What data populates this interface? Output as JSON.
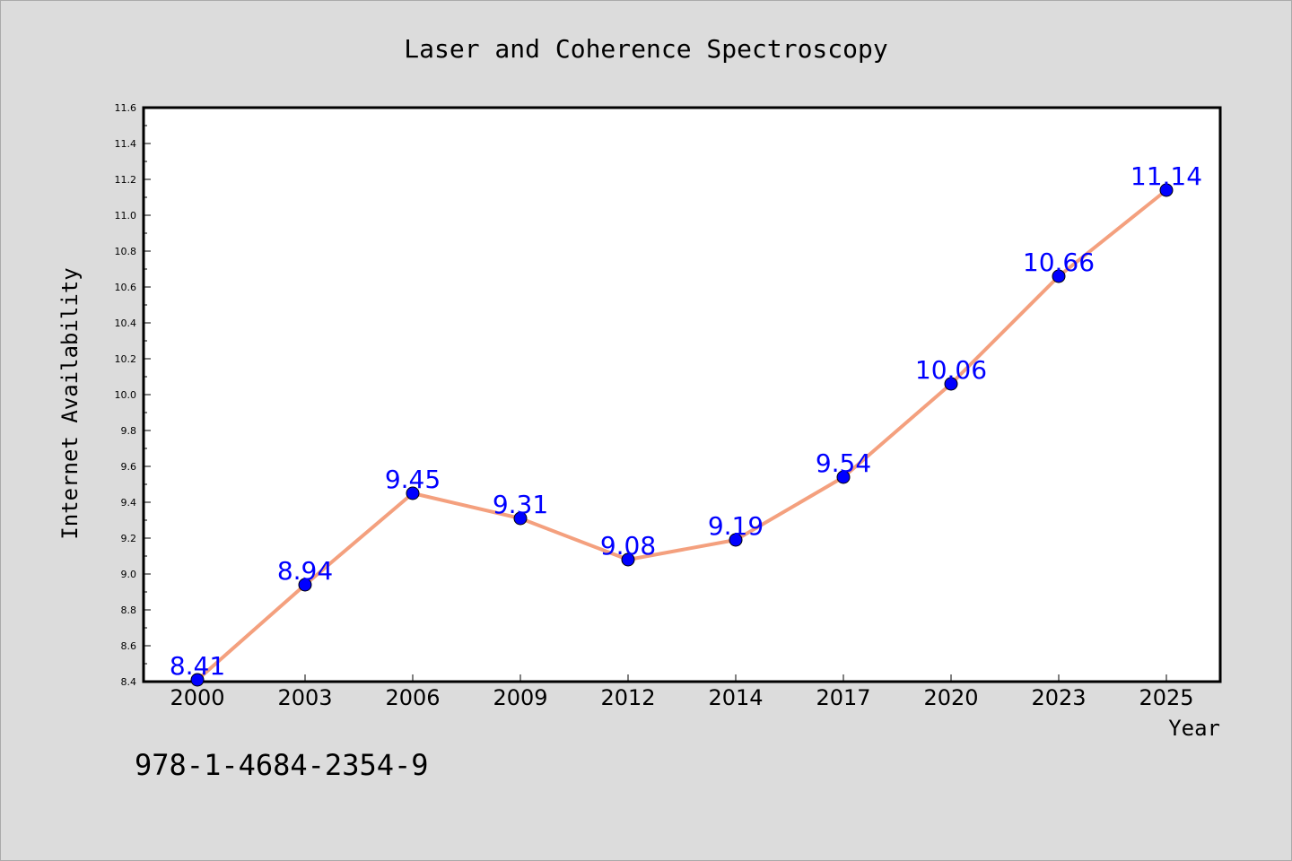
{
  "chart_data": {
    "type": "line",
    "title": "Laser and Coherence Spectroscopy",
    "xlabel": "Year",
    "ylabel": "Internet Availability",
    "categories": [
      "2000",
      "2003",
      "2006",
      "2009",
      "2012",
      "2014",
      "2017",
      "2020",
      "2023",
      "2025"
    ],
    "series": [
      {
        "values": [
          8.41,
          8.94,
          9.45,
          9.31,
          9.08,
          9.19,
          9.54,
          10.06,
          10.66,
          11.14
        ],
        "labels": [
          "8.41",
          "8.94",
          "9.45",
          "9.31",
          "9.08",
          "9.19",
          "9.54",
          "10.06",
          "10.66",
          "11.14"
        ],
        "line_color": "#f4a07e",
        "marker_color": "#0000ff",
        "label_color": "#0000ff"
      }
    ],
    "ylim": [
      8.4,
      11.6
    ],
    "yticks": [
      "8.4",
      "8.6",
      "8.8",
      "9.0",
      "9.2",
      "9.4",
      "9.6",
      "9.8",
      "10.0",
      "10.2",
      "10.4",
      "10.6",
      "10.8",
      "11.0",
      "11.2",
      "11.4",
      "11.6"
    ],
    "grid": false,
    "legend": "none"
  },
  "footer_text": "978-1-4684-2354-9",
  "colors": {
    "background": "#dcdcdc",
    "plot_area": "#ffffff",
    "axis": "#000000"
  }
}
